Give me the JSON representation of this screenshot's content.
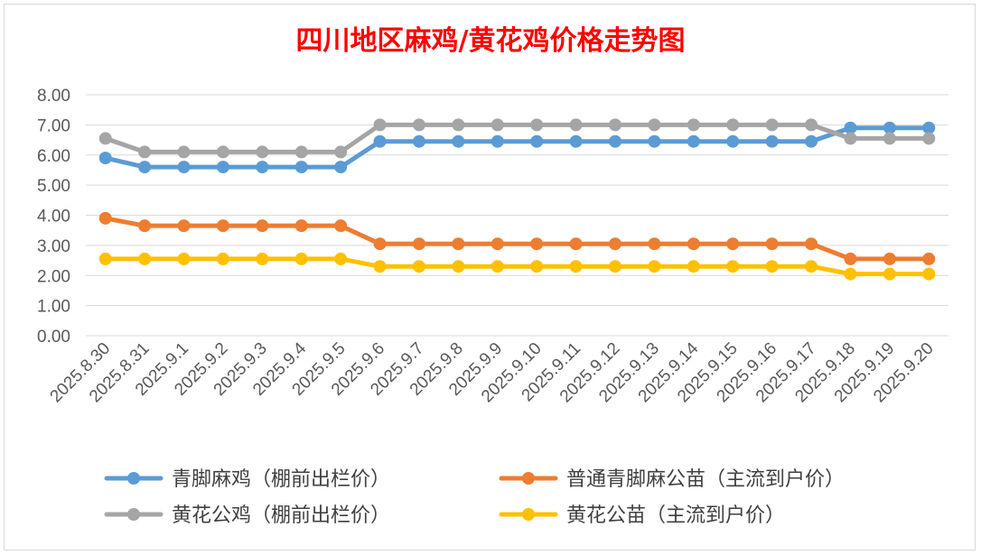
{
  "chart_data": {
    "type": "line",
    "title": "四川地区麻鸡/黄花鸡价格走势图",
    "title_color": "#ff0000",
    "xlabel": "",
    "ylabel": "",
    "ylim": [
      0,
      8
    ],
    "y_step": 1,
    "y_tick_decimals": 2,
    "grid": true,
    "legend_position": "bottom",
    "categories": [
      "2025.8.30",
      "2025.8.31",
      "2025.9.1",
      "2025.9.2",
      "2025.9.3",
      "2025.9.4",
      "2025.9.5",
      "2025.9.6",
      "2025.9.7",
      "2025.9.8",
      "2025.9.9",
      "2025.9.10",
      "2025.9.11",
      "2025.9.12",
      "2025.9.13",
      "2025.9.14",
      "2025.9.15",
      "2025.9.16",
      "2025.9.17",
      "2025.9.18",
      "2025.9.19",
      "2025.9.20"
    ],
    "series": [
      {
        "name": "青脚麻鸡（棚前出栏价）",
        "color": "#5b9bd5",
        "values": [
          5.9,
          5.6,
          5.6,
          5.6,
          5.6,
          5.6,
          5.6,
          6.45,
          6.45,
          6.45,
          6.45,
          6.45,
          6.45,
          6.45,
          6.45,
          6.45,
          6.45,
          6.45,
          6.45,
          6.9,
          6.9,
          6.9
        ]
      },
      {
        "name": "普通青脚麻公苗（主流到户价）",
        "color": "#ed7d31",
        "values": [
          3.9,
          3.65,
          3.65,
          3.65,
          3.65,
          3.65,
          3.65,
          3.05,
          3.05,
          3.05,
          3.05,
          3.05,
          3.05,
          3.05,
          3.05,
          3.05,
          3.05,
          3.05,
          3.05,
          2.55,
          2.55,
          2.55
        ]
      },
      {
        "name": "黄花公鸡（棚前出栏价）",
        "color": "#a5a5a5",
        "values": [
          6.55,
          6.1,
          6.1,
          6.1,
          6.1,
          6.1,
          6.1,
          7.0,
          7.0,
          7.0,
          7.0,
          7.0,
          7.0,
          7.0,
          7.0,
          7.0,
          7.0,
          7.0,
          7.0,
          6.55,
          6.55,
          6.55
        ]
      },
      {
        "name": "黄花公苗（主流到户价）",
        "color": "#ffc000",
        "values": [
          2.55,
          2.55,
          2.55,
          2.55,
          2.55,
          2.55,
          2.55,
          2.3,
          2.3,
          2.3,
          2.3,
          2.3,
          2.3,
          2.3,
          2.3,
          2.3,
          2.3,
          2.3,
          2.3,
          2.05,
          2.05,
          2.05
        ]
      }
    ]
  }
}
